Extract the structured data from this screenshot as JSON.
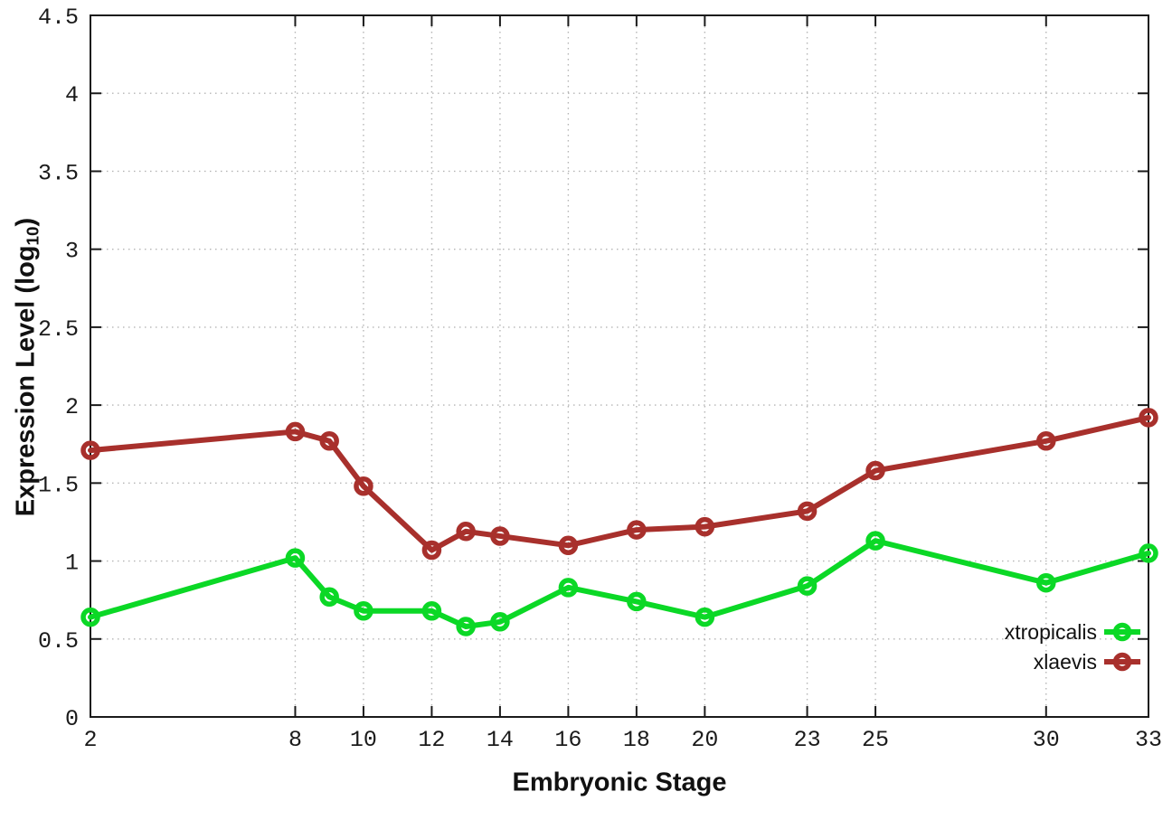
{
  "chart_data": {
    "type": "line",
    "title": "",
    "xlabel": "Embryonic Stage",
    "ylabel": "Expression Level (log10)",
    "ylabel_parts": {
      "main": "Expression Level (log",
      "sub": "10",
      "end": ")"
    },
    "x": [
      2,
      8,
      9,
      10,
      12,
      13,
      14,
      16,
      18,
      20,
      23,
      25,
      30,
      33
    ],
    "series": [
      {
        "name": "xtropicalis",
        "color": "#0bd826",
        "marker": "open-circle",
        "values": [
          0.64,
          1.02,
          0.77,
          0.68,
          0.68,
          0.58,
          0.61,
          0.83,
          0.74,
          0.64,
          0.84,
          1.13,
          0.86,
          1.05
        ]
      },
      {
        "name": "xlaevis",
        "color": "#a8302c",
        "marker": "open-circle",
        "values": [
          1.71,
          1.83,
          1.77,
          1.48,
          1.07,
          1.19,
          1.16,
          1.1,
          1.2,
          1.22,
          1.32,
          1.58,
          1.77,
          1.92
        ]
      }
    ],
    "xlim": [
      2,
      33
    ],
    "ylim": [
      0,
      4.5
    ],
    "xticks": [
      2,
      8,
      10,
      12,
      14,
      16,
      18,
      20,
      23,
      25,
      30,
      33
    ],
    "yticks": [
      0,
      0.5,
      1,
      1.5,
      2,
      2.5,
      3,
      3.5,
      4,
      4.5
    ],
    "ytick_labels": [
      "0",
      "0.5",
      "1",
      "1.5",
      "2",
      "2.5",
      "3",
      "3.5",
      "4",
      "4.5"
    ],
    "grid": true,
    "legend_position": "inside bottom-right"
  },
  "style": {
    "background": "#ffffff",
    "border_color": "#1b1b1b",
    "grid_color": "#b5b5b5",
    "tick_label_color": "#1b1b1b",
    "legend_text_color": "#111111"
  }
}
